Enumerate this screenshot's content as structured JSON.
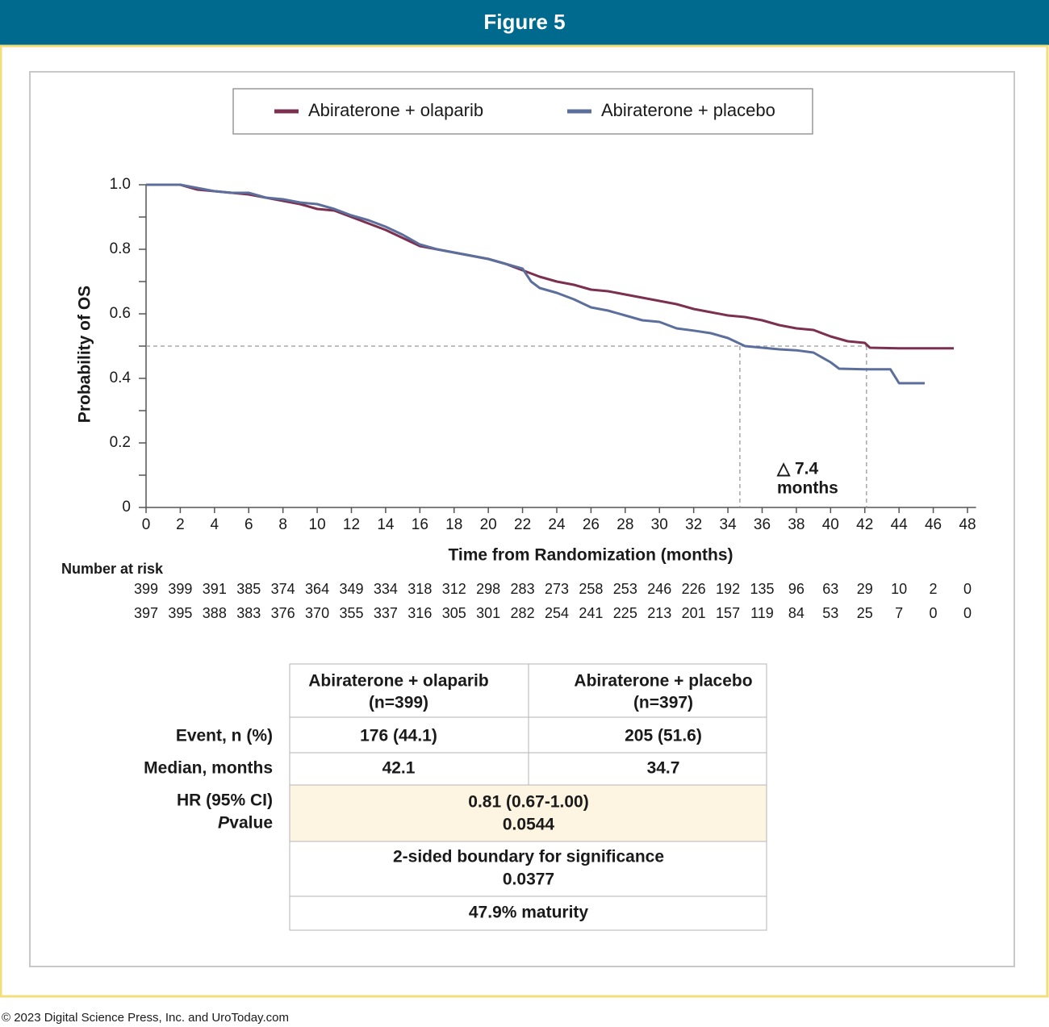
{
  "header": {
    "title": "Figure 5"
  },
  "chart_data": {
    "type": "line",
    "legend_position": "top",
    "series": [
      {
        "name": "Abiraterone + olaparib",
        "color": "#7b3050",
        "x": [
          0,
          2,
          3,
          4,
          6,
          7,
          8,
          9,
          10,
          11,
          12,
          13,
          14,
          15,
          16,
          17,
          18,
          19,
          20,
          21,
          22,
          23,
          24,
          25,
          26,
          27,
          28,
          29,
          30,
          31,
          32,
          33,
          34,
          35,
          36,
          37,
          38,
          39,
          40,
          41,
          42,
          42.3,
          44,
          46,
          47.2
        ],
        "values": [
          1.0,
          1.0,
          0.985,
          0.98,
          0.97,
          0.96,
          0.95,
          0.94,
          0.925,
          0.92,
          0.9,
          0.88,
          0.86,
          0.835,
          0.81,
          0.8,
          0.79,
          0.78,
          0.77,
          0.755,
          0.735,
          0.715,
          0.7,
          0.69,
          0.675,
          0.67,
          0.66,
          0.65,
          0.64,
          0.63,
          0.615,
          0.605,
          0.595,
          0.59,
          0.58,
          0.565,
          0.555,
          0.55,
          0.53,
          0.515,
          0.51,
          0.495,
          0.493,
          0.493,
          0.493
        ]
      },
      {
        "name": "Abiraterone + placebo",
        "color": "#5c6e9c",
        "x": [
          0,
          2,
          3,
          4,
          5,
          6,
          7,
          8,
          9,
          10,
          11,
          12,
          13,
          14,
          15,
          16,
          17,
          18,
          19,
          20,
          21,
          22,
          22.5,
          23,
          24,
          25,
          26,
          27,
          28,
          29,
          30,
          31,
          32,
          33,
          34,
          35,
          36,
          37,
          38,
          39,
          40,
          40.5,
          42,
          43.5,
          44,
          45.5
        ],
        "values": [
          1.0,
          1.0,
          0.99,
          0.98,
          0.975,
          0.975,
          0.96,
          0.955,
          0.945,
          0.94,
          0.925,
          0.905,
          0.89,
          0.87,
          0.845,
          0.815,
          0.8,
          0.79,
          0.78,
          0.77,
          0.755,
          0.74,
          0.7,
          0.68,
          0.665,
          0.645,
          0.62,
          0.61,
          0.595,
          0.58,
          0.575,
          0.555,
          0.548,
          0.54,
          0.525,
          0.5,
          0.495,
          0.49,
          0.487,
          0.48,
          0.45,
          0.43,
          0.428,
          0.428,
          0.385,
          0.385
        ]
      }
    ],
    "xlabel": "Time from Randomization (months)",
    "ylabel": "Probability of OS",
    "xlim": [
      0,
      48.5
    ],
    "ylim": [
      0,
      1.0
    ],
    "xticks": [
      0,
      2,
      4,
      6,
      8,
      10,
      12,
      14,
      16,
      18,
      20,
      22,
      24,
      26,
      28,
      30,
      32,
      34,
      36,
      38,
      40,
      42,
      44,
      46,
      48
    ],
    "yticks": [
      0,
      0.2,
      0.4,
      0.6,
      0.8,
      {
        "value": 1.0,
        "label": "1.0"
      }
    ],
    "yticks_minor": [
      0.1,
      0.3,
      0.5,
      0.7,
      0.9
    ],
    "reference_y": 0.5,
    "median_x": [
      34.7,
      42.1
    ],
    "annotation": [
      "△ 7.4",
      "months"
    ],
    "risk_table": {
      "title": "Number at risk",
      "rows": [
        [
          "399",
          "399",
          "391",
          "385",
          "374",
          "364",
          "349",
          "334",
          "318",
          "312",
          "298",
          "283",
          "273",
          "258",
          "253",
          "246",
          "226",
          "192",
          "135",
          "96",
          "63",
          "29",
          "10",
          "2",
          "0"
        ],
        [
          "397",
          "395",
          "388",
          "383",
          "376",
          "370",
          "355",
          "337",
          "316",
          "305",
          "301",
          "282",
          "254",
          "241",
          "225",
          "213",
          "201",
          "157",
          "119",
          "84",
          "53",
          "25",
          "7",
          "0",
          "0"
        ]
      ]
    }
  },
  "table": {
    "columns": [
      [
        "Abiraterone + olaparib",
        "(n=399)"
      ],
      [
        "Abiraterone + placebo",
        "(n=397)"
      ]
    ],
    "rows": [
      {
        "label": "Event, n (%)",
        "cells": [
          "176 (44.1)",
          "205 (51.6)"
        ]
      },
      {
        "label": "Median, months",
        "cells": [
          "42.1",
          "34.7"
        ]
      }
    ],
    "hr": {
      "label": "HR (95% CI)",
      "p_label": [
        "P",
        "value"
      ],
      "lines": [
        "0.81 (0.67-1.00)",
        "0.0544"
      ]
    },
    "notes": [
      [
        "2-sided boundary for significance",
        "0.0377"
      ],
      [
        "47.9% maturity"
      ]
    ]
  },
  "footer": "© 2023 Digital Science Press, Inc. and UroToday.com"
}
